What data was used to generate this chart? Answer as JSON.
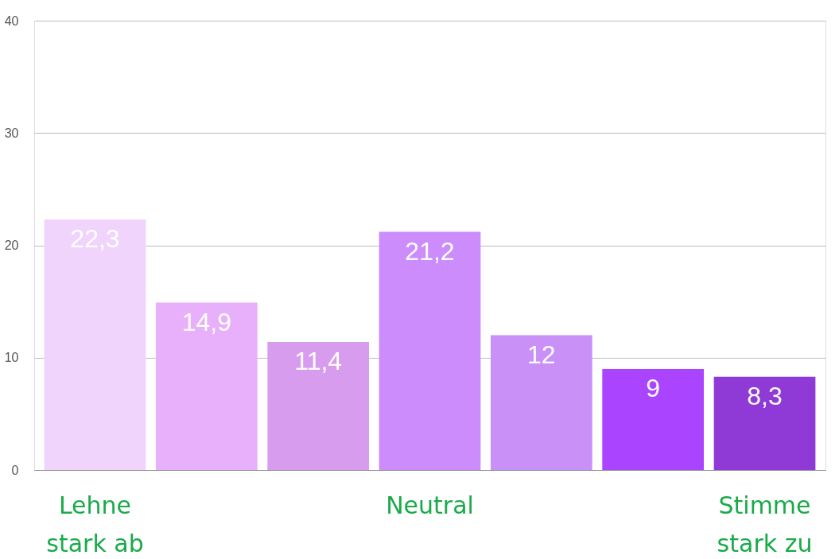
{
  "chart_data": {
    "type": "bar",
    "categories": [
      "Lehne stark ab",
      null,
      null,
      "Neutral",
      null,
      null,
      "Stimme stark zu"
    ],
    "values": [
      22.3,
      14.9,
      11.4,
      21.2,
      12,
      9,
      8.3
    ],
    "value_labels": [
      "22,3",
      "14,9",
      "11,4",
      "21,2",
      "12",
      "9",
      "8,3"
    ],
    "colors": [
      "#f0d4fc",
      "#e8b0fa",
      "#d89cee",
      "#cc8cfc",
      "#c990f8",
      "#aa44ff",
      "#8f3ad6"
    ],
    "ylim": [
      0,
      40
    ],
    "yticks": [
      0,
      10,
      20,
      30,
      40
    ],
    "grid": "y",
    "legend": false
  }
}
